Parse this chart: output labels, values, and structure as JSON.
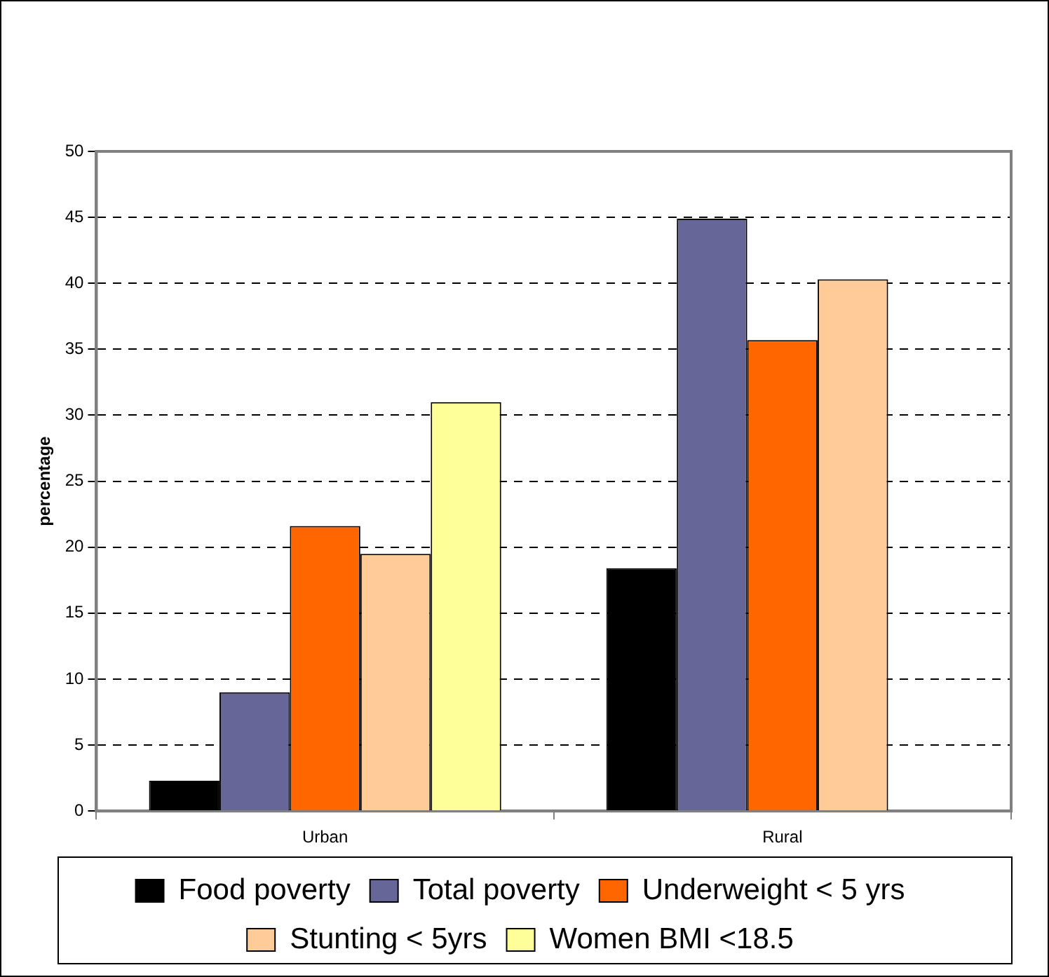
{
  "chart_data": {
    "type": "bar",
    "ylabel": "percentage",
    "categories": [
      "Urban",
      "Rural"
    ],
    "series": [
      {
        "name": "Food poverty",
        "color": "#000000",
        "values": [
          2.3,
          18.4
        ]
      },
      {
        "name": "Total poverty",
        "color": "#666699",
        "values": [
          9,
          44.9
        ]
      },
      {
        "name": "Underweight < 5 yrs",
        "color": "#ff6600",
        "values": [
          21.6,
          35.7
        ]
      },
      {
        "name": "Stunting < 5yrs",
        "color": "#ffcc99",
        "values": [
          19.5,
          40.3
        ]
      },
      {
        "name": "Women BMI <18.5",
        "color": "#ffff99",
        "values": [
          31,
          null
        ]
      }
    ],
    "ylim": [
      0,
      50
    ],
    "yticks": [
      0,
      5,
      10,
      15,
      20,
      25,
      30,
      35,
      40,
      45,
      50
    ],
    "grid": "y",
    "legend": "bottom"
  }
}
